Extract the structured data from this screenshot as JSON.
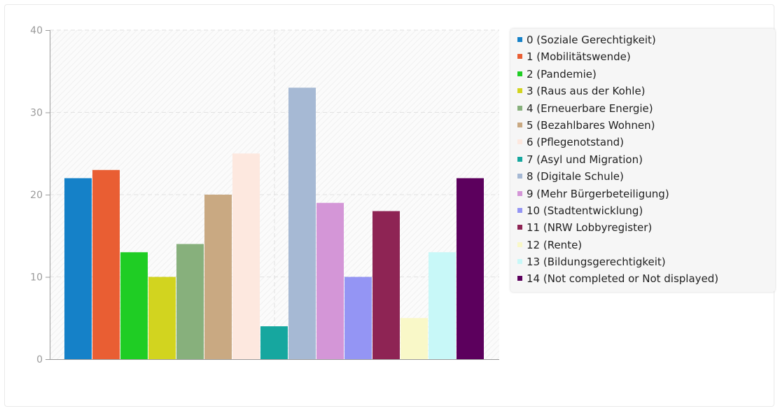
{
  "chart_data": {
    "type": "bar",
    "title": "",
    "xlabel": "",
    "ylabel": "",
    "ylim": [
      0,
      40
    ],
    "yticks": [
      0,
      10,
      20,
      30,
      40
    ],
    "grid": true,
    "legend_position": "right",
    "series": [
      {
        "name": "0 (Soziale Gerechtigkeit)",
        "value": 22,
        "color": "#1581c8"
      },
      {
        "name": "1 (Mobilitätswende)",
        "value": 23,
        "color": "#e95e33"
      },
      {
        "name": "2 (Pandemie)",
        "value": 13,
        "color": "#1fcd24"
      },
      {
        "name": "3 (Raus aus der Kohle)",
        "value": 10,
        "color": "#d2d41f"
      },
      {
        "name": "4 (Erneuerbare Energie)",
        "value": 14,
        "color": "#87b07c"
      },
      {
        "name": "5 (Bezahlbares Wohnen)",
        "value": 20,
        "color": "#c9a982"
      },
      {
        "name": "6 (Pflegenotstand)",
        "value": 25,
        "color": "#fde8df"
      },
      {
        "name": "7 (Asyl und Migration)",
        "value": 4,
        "color": "#16a79f"
      },
      {
        "name": "8 (Digitale Schule)",
        "value": 33,
        "color": "#a6b9d4"
      },
      {
        "name": "9 (Mehr Bürgerbeteiligung)",
        "value": 19,
        "color": "#d496d7"
      },
      {
        "name": "10 (Stadtentwicklung)",
        "value": 10,
        "color": "#9495f4"
      },
      {
        "name": "11 (NRW Lobbyregister)",
        "value": 18,
        "color": "#8e2454"
      },
      {
        "name": "12 (Rente)",
        "value": 5,
        "color": "#f9f8c8"
      },
      {
        "name": "13 (Bildungsgerechtigkeit)",
        "value": 13,
        "color": "#c8f8f8"
      },
      {
        "name": "14 (Not completed or Not displayed)",
        "value": 22,
        "color": "#5c005d"
      }
    ]
  }
}
